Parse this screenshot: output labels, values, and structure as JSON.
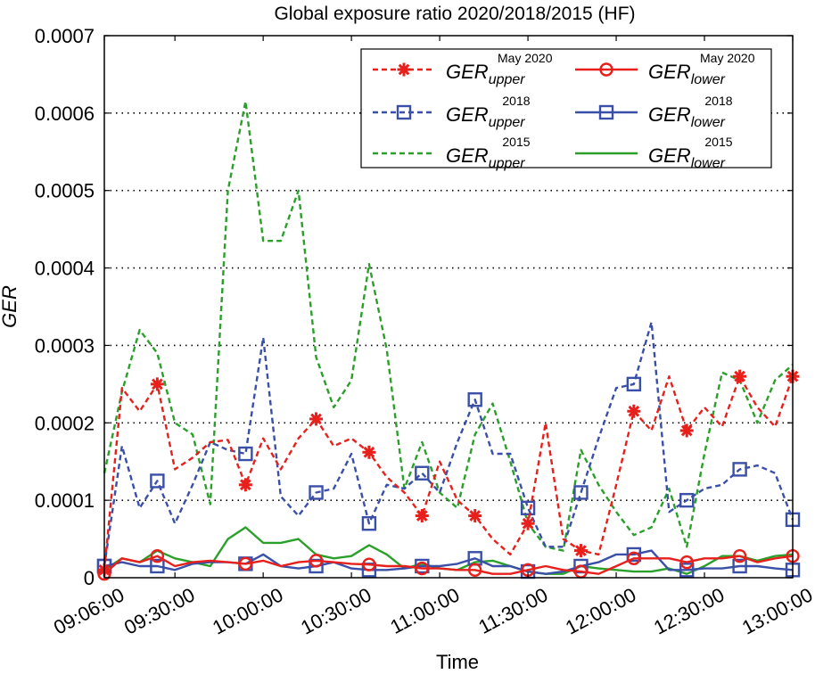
{
  "chart_data": {
    "type": "line",
    "title": "Global exposure ratio 2020/2018/2015 (HF)",
    "xlabel": "Time",
    "ylabel": "GER",
    "xlim": [
      9.1,
      13.0
    ],
    "ylim": [
      0,
      0.0007
    ],
    "x_ticks": [
      {
        "value": 9.1,
        "label": "09:06:00"
      },
      {
        "value": 9.5,
        "label": "09:30:00"
      },
      {
        "value": 10.0,
        "label": "10:00:00"
      },
      {
        "value": 10.5,
        "label": "10:30:00"
      },
      {
        "value": 11.0,
        "label": "11:00:00"
      },
      {
        "value": 11.5,
        "label": "11:30:00"
      },
      {
        "value": 12.0,
        "label": "12:00:00"
      },
      {
        "value": 12.5,
        "label": "12:30:00"
      },
      {
        "value": 13.0,
        "label": "13:00:00"
      }
    ],
    "y_ticks": [
      {
        "value": 0,
        "label": "0"
      },
      {
        "value": 0.0001,
        "label": "0.0001"
      },
      {
        "value": 0.0002,
        "label": "0.0002"
      },
      {
        "value": 0.0003,
        "label": "0.0003"
      },
      {
        "value": 0.0004,
        "label": "0.0004"
      },
      {
        "value": 0.0005,
        "label": "0.0005"
      },
      {
        "value": 0.0006,
        "label": "0.0006"
      },
      {
        "value": 0.0007,
        "label": "0.0007"
      }
    ],
    "grid": "horizontal-dotted",
    "legend_position": "top-right",
    "series": [
      {
        "name": "GER upper May 2020",
        "base": "GER",
        "sub": "upper",
        "sup": "May 2020",
        "color": "#e8201c",
        "dashed": true,
        "marker": "star",
        "x": [
          9.1,
          9.2,
          9.3,
          9.4,
          9.5,
          9.6,
          9.7,
          9.8,
          9.9,
          10.0,
          10.1,
          10.2,
          10.3,
          10.4,
          10.5,
          10.6,
          10.7,
          10.8,
          10.9,
          11.0,
          11.1,
          11.2,
          11.3,
          11.4,
          11.5,
          11.6,
          11.7,
          11.8,
          11.9,
          12.0,
          12.1,
          12.2,
          12.3,
          12.4,
          12.5,
          12.6,
          12.7,
          12.8,
          12.9,
          13.0
        ],
        "values": [
          1e-05,
          0.000245,
          0.000215,
          0.00025,
          0.00014,
          0.000155,
          0.000175,
          0.000178,
          0.00012,
          0.00018,
          0.00014,
          0.00018,
          0.000205,
          0.00017,
          0.00018,
          0.000162,
          0.00013,
          0.00011,
          8e-05,
          0.00015,
          0.0001,
          8e-05,
          5e-05,
          3e-05,
          7e-05,
          0.0002,
          5e-05,
          3.5e-05,
          3e-05,
          0.00012,
          0.000215,
          0.00019,
          0.00026,
          0.00019,
          0.00022,
          0.000195,
          0.00026,
          0.00022,
          0.000195,
          0.00026
        ],
        "marker_idx": [
          0,
          3,
          8,
          12,
          15,
          18,
          21,
          24,
          27,
          30,
          33,
          36,
          39
        ]
      },
      {
        "name": "GER lower May 2020",
        "base": "GER",
        "sub": "lower",
        "sup": "May 2020",
        "color": "#e8201c",
        "dashed": false,
        "marker": "circle",
        "x": [
          9.1,
          9.2,
          9.3,
          9.4,
          9.5,
          9.6,
          9.7,
          9.8,
          9.9,
          10.0,
          10.1,
          10.2,
          10.3,
          10.4,
          10.5,
          10.6,
          10.7,
          10.8,
          10.9,
          11.0,
          11.1,
          11.2,
          11.3,
          11.4,
          11.5,
          11.6,
          11.7,
          11.8,
          11.9,
          12.0,
          12.1,
          12.2,
          12.3,
          12.4,
          12.5,
          12.6,
          12.7,
          12.8,
          12.9,
          13.0
        ],
        "values": [
          5e-06,
          2.5e-05,
          2e-05,
          2.8e-05,
          1.5e-05,
          2e-05,
          2.2e-05,
          2e-05,
          1.8e-05,
          2.2e-05,
          1.5e-05,
          2e-05,
          2.2e-05,
          2e-05,
          1.8e-05,
          1.7e-05,
          1.5e-05,
          1.5e-05,
          1.2e-05,
          1.2e-05,
          1e-05,
          1e-05,
          5e-06,
          5e-06,
          1e-05,
          1.5e-05,
          1e-05,
          8e-06,
          5e-06,
          1.5e-05,
          2.5e-05,
          2.5e-05,
          2.5e-05,
          2e-05,
          2.5e-05,
          2.5e-05,
          2.8e-05,
          2e-05,
          2.5e-05,
          2.8e-05
        ],
        "marker_idx": [
          0,
          3,
          8,
          12,
          15,
          18,
          21,
          24,
          27,
          30,
          33,
          36,
          39
        ]
      },
      {
        "name": "GER upper 2018",
        "base": "GER",
        "sub": "upper",
        "sup": "2018",
        "color": "#3a4fa8",
        "dashed": true,
        "marker": "square",
        "x": [
          9.1,
          9.2,
          9.3,
          9.4,
          9.5,
          9.6,
          9.7,
          9.8,
          9.9,
          10.0,
          10.1,
          10.2,
          10.3,
          10.4,
          10.5,
          10.6,
          10.7,
          10.8,
          10.9,
          11.0,
          11.1,
          11.2,
          11.3,
          11.4,
          11.5,
          11.6,
          11.7,
          11.8,
          11.9,
          12.0,
          12.1,
          12.2,
          12.3,
          12.4,
          12.5,
          12.6,
          12.7,
          12.8,
          12.9,
          13.0
        ],
        "values": [
          1.5e-05,
          0.00017,
          9e-05,
          0.000125,
          7e-05,
          0.00012,
          0.000175,
          0.000165,
          0.00016,
          0.00031,
          0.000105,
          8e-05,
          0.00011,
          0.000115,
          0.00016,
          7e-05,
          0.00012,
          0.000115,
          0.000135,
          0.00011,
          0.000175,
          0.00023,
          0.00016,
          0.00016,
          9e-05,
          4e-05,
          4e-05,
          0.00011,
          0.00018,
          0.000245,
          0.00025,
          0.00033,
          8.5e-05,
          0.0001,
          0.000115,
          0.00012,
          0.00014,
          0.000145,
          0.000135,
          7.5e-05
        ],
        "marker_idx": [
          0,
          3,
          8,
          12,
          15,
          18,
          21,
          24,
          27,
          30,
          33,
          36,
          39
        ]
      },
      {
        "name": "GER lower 2018",
        "base": "GER",
        "sub": "lower",
        "sup": "2018",
        "color": "#3a4fa8",
        "dashed": false,
        "marker": "square",
        "x": [
          9.1,
          9.2,
          9.3,
          9.4,
          9.5,
          9.6,
          9.7,
          9.8,
          9.9,
          10.0,
          10.1,
          10.2,
          10.3,
          10.4,
          10.5,
          10.6,
          10.7,
          10.8,
          10.9,
          11.0,
          11.1,
          11.2,
          11.3,
          11.4,
          11.5,
          11.6,
          11.7,
          11.8,
          11.9,
          12.0,
          12.1,
          12.2,
          12.3,
          12.4,
          12.5,
          12.6,
          12.7,
          12.8,
          12.9,
          13.0
        ],
        "values": [
          1.5e-05,
          2e-05,
          1.5e-05,
          1.5e-05,
          1e-05,
          1.8e-05,
          2e-05,
          2e-05,
          1.8e-05,
          3e-05,
          1.5e-05,
          1.2e-05,
          1.5e-05,
          2e-05,
          1.2e-05,
          1e-05,
          1e-05,
          1.2e-05,
          1.5e-05,
          1.5e-05,
          1.8e-05,
          2.5e-05,
          1.5e-05,
          1.5e-05,
          8e-06,
          5e-06,
          8e-06,
          1.5e-05,
          2e-05,
          3e-05,
          3e-05,
          3.5e-05,
          1e-05,
          1e-05,
          1.2e-05,
          1.2e-05,
          1.5e-05,
          1.5e-05,
          1.2e-05,
          1e-05
        ],
        "marker_idx": [
          0,
          3,
          8,
          12,
          15,
          18,
          21,
          24,
          27,
          30,
          33,
          36,
          39
        ]
      },
      {
        "name": "GER upper 2015",
        "base": "GER",
        "sub": "upper",
        "sup": "2015",
        "color": "#2aa02a",
        "dashed": true,
        "marker": "none",
        "x": [
          9.1,
          9.2,
          9.3,
          9.4,
          9.5,
          9.6,
          9.7,
          9.8,
          9.9,
          10.0,
          10.1,
          10.2,
          10.3,
          10.4,
          10.5,
          10.6,
          10.7,
          10.8,
          10.9,
          11.0,
          11.1,
          11.2,
          11.3,
          11.4,
          11.5,
          11.6,
          11.7,
          11.8,
          11.9,
          12.0,
          12.1,
          12.2,
          12.3,
          12.4,
          12.5,
          12.6,
          12.7,
          12.8,
          12.9,
          13.0
        ],
        "values": [
          0.000135,
          0.00024,
          0.00032,
          0.00029,
          0.0002,
          0.000185,
          9.5e-05,
          0.0005,
          0.000615,
          0.000435,
          0.000435,
          0.0005,
          0.000285,
          0.00022,
          0.000255,
          0.000405,
          0.000295,
          0.000115,
          0.000175,
          0.00011,
          9e-05,
          0.000185,
          0.000225,
          0.00015,
          7e-05,
          4e-05,
          3.5e-05,
          0.000165,
          0.00012,
          8.5e-05,
          5.5e-05,
          6.5e-05,
          0.000115,
          4e-05,
          0.00016,
          0.000265,
          0.000255,
          0.0002,
          0.000255,
          0.000275
        ],
        "marker_idx": []
      },
      {
        "name": "GER lower 2015",
        "base": "GER",
        "sub": "lower",
        "sup": "2015",
        "color": "#2aa02a",
        "dashed": false,
        "marker": "none",
        "x": [
          9.1,
          9.2,
          9.3,
          9.4,
          9.5,
          9.6,
          9.7,
          9.8,
          9.9,
          10.0,
          10.1,
          10.2,
          10.3,
          10.4,
          10.5,
          10.6,
          10.7,
          10.8,
          10.9,
          11.0,
          11.1,
          11.2,
          11.3,
          11.4,
          11.5,
          11.6,
          11.7,
          11.8,
          11.9,
          12.0,
          12.1,
          12.2,
          12.3,
          12.4,
          12.5,
          12.6,
          12.7,
          12.8,
          12.9,
          13.0
        ],
        "values": [
          1e-05,
          2.5e-05,
          2e-05,
          3.5e-05,
          2.5e-05,
          2e-05,
          1.5e-05,
          5e-05,
          6.5e-05,
          4.5e-05,
          4.5e-05,
          5e-05,
          3e-05,
          2.5e-05,
          2.8e-05,
          4.2e-05,
          3e-05,
          1.2e-05,
          1.8e-05,
          1.2e-05,
          1e-05,
          2e-05,
          2.2e-05,
          1.5e-05,
          8e-06,
          5e-06,
          5e-06,
          1.5e-05,
          1.2e-05,
          1e-05,
          8e-06,
          8e-06,
          1.2e-05,
          5e-06,
          1.5e-05,
          2.8e-05,
          2.8e-05,
          2.2e-05,
          2.8e-05,
          3e-05
        ],
        "marker_idx": []
      }
    ]
  }
}
